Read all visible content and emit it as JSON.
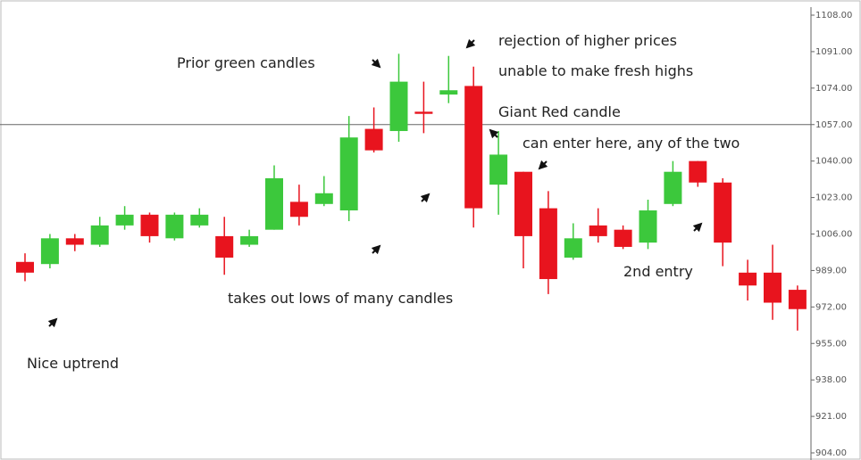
{
  "chart_data": {
    "type": "candlestick",
    "open": [
      993,
      992,
      1004,
      1001,
      1010,
      1015,
      1004,
      1010,
      1005,
      1001,
      1008,
      1021,
      1020,
      1017,
      1055,
      1054,
      1063,
      1071,
      1075,
      1029,
      1035,
      1018,
      995,
      1010,
      1008,
      1002,
      1020,
      1040,
      1030,
      988,
      988,
      980
    ],
    "high": [
      997,
      1006,
      1006,
      1014,
      1019,
      1016,
      1016,
      1018,
      1014,
      1008,
      1038,
      1029,
      1033,
      1061,
      1065,
      1090,
      1077,
      1089,
      1084,
      1054,
      1035,
      1026,
      1011,
      1018,
      1010,
      1022,
      1040,
      1040,
      1032,
      994,
      1001,
      982
    ],
    "low": [
      984,
      990,
      998,
      1000,
      1008,
      1002,
      1003,
      1009,
      987,
      1000,
      1008,
      1010,
      1019,
      1012,
      1044,
      1049,
      1053,
      1067,
      1009,
      1015,
      990,
      978,
      994,
      1002,
      999,
      999,
      1019,
      1028,
      991,
      975,
      966,
      961
    ],
    "close": [
      988,
      1004,
      1001,
      1010,
      1015,
      1005,
      1015,
      1015,
      995,
      1005,
      1032,
      1014,
      1025,
      1051,
      1045,
      1077,
      1062,
      1073,
      1018,
      1043,
      1005,
      985,
      1004,
      1005,
      1000,
      1017,
      1035,
      1030,
      1002,
      982,
      974,
      971
    ],
    "up_color": "#3cc83c",
    "down_color": "#e8141e",
    "reference_line": 1057,
    "ylim": [
      904,
      1108
    ],
    "yticks": [
      {
        "value": 1108,
        "label": "1108.00"
      },
      {
        "value": 1091,
        "label": "1091.00"
      },
      {
        "value": 1074,
        "label": "1074.00"
      },
      {
        "value": 1057,
        "label": "1057.00"
      },
      {
        "value": 1040,
        "label": "1040.00"
      },
      {
        "value": 1023,
        "label": "1023.00"
      },
      {
        "value": 1006,
        "label": "1006.00"
      },
      {
        "value": 989,
        "label": "989.00"
      },
      {
        "value": 972,
        "label": "972.00"
      },
      {
        "value": 955,
        "label": "955.00"
      },
      {
        "value": 938,
        "label": "938.00"
      },
      {
        "value": 921,
        "label": "921.00"
      },
      {
        "value": 904,
        "label": "904.00"
      }
    ],
    "annotations": [
      "Prior green candles",
      "rejection of higher prices",
      "unable to make fresh highs",
      "Giant Red candle",
      "can enter here, any of the two",
      "takes out lows of many candles",
      "2nd entry",
      "Nice uptrend"
    ]
  }
}
